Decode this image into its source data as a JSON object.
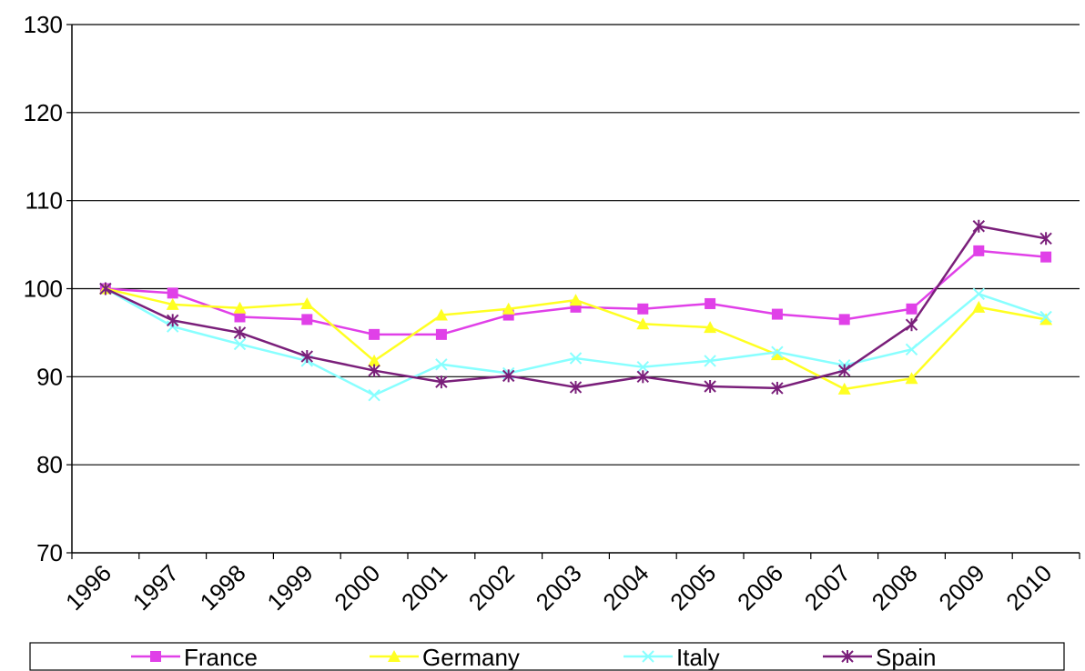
{
  "chart_data": {
    "type": "line",
    "title": "",
    "xlabel": "",
    "ylabel": "",
    "ylim": [
      70,
      130
    ],
    "yticks": [
      70,
      80,
      90,
      100,
      110,
      120,
      130
    ],
    "grid": true,
    "legend_placement": "bottom",
    "categories": [
      "1996",
      "1997",
      "1998",
      "1999",
      "2000",
      "2001",
      "2002",
      "2003",
      "2004",
      "2005",
      "2006",
      "2007",
      "2008",
      "2009",
      "2010"
    ],
    "series": [
      {
        "name": "France",
        "color": "#e040e8",
        "marker": "square",
        "values": [
          100,
          99.5,
          96.8,
          96.5,
          94.8,
          94.8,
          97.0,
          97.9,
          97.7,
          98.3,
          97.1,
          96.5,
          97.7,
          104.3,
          103.6
        ]
      },
      {
        "name": "Germany",
        "color": "#ffff22",
        "marker": "triangle",
        "values": [
          100,
          98.2,
          97.8,
          98.3,
          91.8,
          97.0,
          97.7,
          98.7,
          96.0,
          95.6,
          92.5,
          88.6,
          89.8,
          97.9,
          96.5
        ]
      },
      {
        "name": "Italy",
        "color": "#88ffff",
        "marker": "x",
        "values": [
          100,
          95.7,
          93.7,
          91.8,
          87.9,
          91.4,
          90.4,
          92.1,
          91.1,
          91.8,
          92.8,
          91.3,
          93.1,
          99.4,
          96.8
        ]
      },
      {
        "name": "Spain",
        "color": "#7a1f7a",
        "marker": "star",
        "values": [
          100,
          96.4,
          95.0,
          92.3,
          90.7,
          89.4,
          90.1,
          88.8,
          90.0,
          88.9,
          88.7,
          90.7,
          95.9,
          107.1,
          105.7
        ]
      }
    ]
  }
}
